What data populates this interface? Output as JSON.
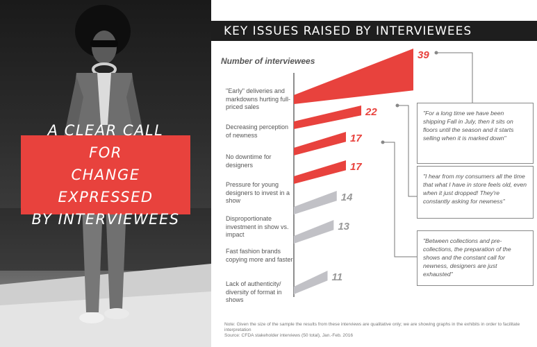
{
  "callout": {
    "text": "A CLEAR CALL FOR\nCHANGE EXPRESSED\nBY INTERVIEWEES"
  },
  "header": {
    "title": "KEY ISSUES RAISED BY INTERVIEWEES"
  },
  "colors": {
    "highlight": "#e8423d",
    "muted": "#c1c1c6",
    "dark": "#1e1e1e"
  },
  "chart_data": {
    "type": "bar",
    "title": "KEY ISSUES RAISED BY INTERVIEWEES",
    "ylabel": "Number of interviewees",
    "xlabel": "",
    "categories": [
      "\"Early\" deliveries and markdowns hurting full-priced sales",
      "Decreasing perception of newness",
      "No downtime for designers",
      "Pressure for young designers to invest in a show",
      "Disproportionate investment in show vs. impact",
      "Fast fashion brands copying more and faster",
      "Lack of authenticity/ diversity of format in shows"
    ],
    "values": [
      39,
      22,
      17,
      17,
      14,
      13,
      11
    ],
    "value_labels": [
      "39",
      "22",
      "17",
      "17",
      "14",
      "13",
      "11"
    ],
    "highlighted": [
      true,
      true,
      true,
      true,
      false,
      false,
      false
    ],
    "xlim": [
      0,
      39
    ],
    "grid": false,
    "legend": "none"
  },
  "quotes": [
    "\"For a long time we have been shipping Fall in July, then it sits on floors until the season and it starts selling when it is marked down\"",
    "\"I hear from my consumers all the time that what I have in store feels old, even when it just dropped! They're constantly asking for newness\"",
    "\"Between collections and pre-collections, the preparation of the shows and the constant call for newness, designers are just exhausted\""
  ],
  "notes": {
    "line1": "Note: Given the size of the sample the results from these interviews are qualitative only; we are showing graphs in the exhibits in order to facilitate interpretation",
    "line2": "Source: CFDA stakeholder interviews (50 total), Jan.-Feb. 2016"
  }
}
